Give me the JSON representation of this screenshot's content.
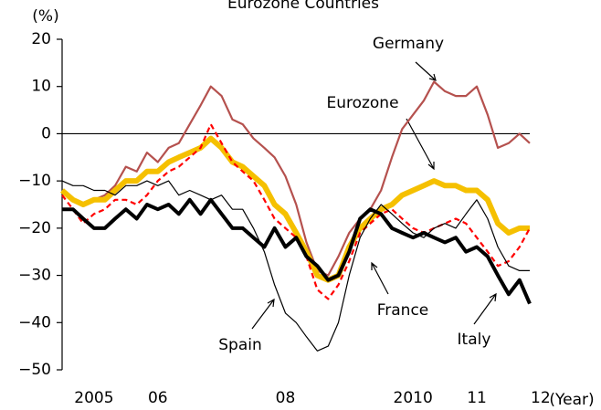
{
  "chart_data": {
    "type": "line",
    "title": "Eurozone Countries",
    "y_axis_label": "(%)",
    "x_axis_label": "(Year)",
    "xlim": [
      2005,
      2012.33
    ],
    "ylim": [
      -50,
      20
    ],
    "xticks": [
      {
        "value": 2005.5,
        "label": "2005"
      },
      {
        "value": 2006.5,
        "label": "06"
      },
      {
        "value": 2008.5,
        "label": "08"
      },
      {
        "value": 2010.5,
        "label": "2010"
      },
      {
        "value": 2011.5,
        "label": "11"
      },
      {
        "value": 2012.5,
        "label": "12"
      }
    ],
    "yticks": [
      20,
      10,
      0,
      {
        "value": -10,
        "label": "−10"
      },
      {
        "value": -20,
        "label": "−20"
      },
      {
        "value": -30,
        "label": "−30"
      },
      {
        "value": -40,
        "label": "−40"
      },
      {
        "value": -50,
        "label": "−50"
      }
    ],
    "x": [
      2005,
      2005.17,
      2005.33,
      2005.5,
      2005.67,
      2005.83,
      2006,
      2006.17,
      2006.33,
      2006.5,
      2006.67,
      2006.83,
      2007,
      2007.17,
      2007.33,
      2007.5,
      2007.67,
      2007.83,
      2008,
      2008.17,
      2008.33,
      2008.5,
      2008.67,
      2008.83,
      2009,
      2009.17,
      2009.33,
      2009.5,
      2009.67,
      2009.83,
      2010,
      2010.17,
      2010.33,
      2010.5,
      2010.67,
      2010.83,
      2011,
      2011.17,
      2011.33,
      2011.5,
      2011.67,
      2011.83,
      2012,
      2012.17,
      2012.33
    ],
    "series": [
      {
        "name": "Germany",
        "color": "#b5514e",
        "width": 2.2,
        "dash": false,
        "values": [
          -12,
          -14,
          -15,
          -14,
          -13,
          -11,
          -7,
          -8,
          -4,
          -6,
          -3,
          -2,
          2,
          6,
          10,
          8,
          3,
          2,
          -1,
          -3,
          -5,
          -9,
          -15,
          -23,
          -29,
          -30,
          -26,
          -21,
          -18,
          -16,
          -12,
          -5,
          1,
          4,
          7,
          11,
          9,
          8,
          8,
          10,
          4,
          -3,
          -2,
          0,
          -2
        ]
      },
      {
        "name": "Eurozone",
        "color": "#f5c000",
        "width": 6,
        "dash": false,
        "values": [
          -12,
          -14,
          -15,
          -14,
          -14,
          -12,
          -10,
          -10,
          -8,
          -8,
          -6,
          -5,
          -4,
          -3,
          -1,
          -3,
          -6,
          -7,
          -9,
          -11,
          -15,
          -17,
          -21,
          -25,
          -30,
          -31,
          -30,
          -24,
          -20,
          -18,
          -16,
          -15,
          -13,
          -12,
          -11,
          -10,
          -11,
          -11,
          -12,
          -12,
          -14,
          -19,
          -21,
          -20,
          -20
        ]
      },
      {
        "name": "France",
        "color": "#ff0000",
        "width": 2.2,
        "dash": true,
        "values": [
          -13,
          -16,
          -19,
          -17,
          -16,
          -14,
          -14,
          -15,
          -13,
          -10,
          -8,
          -7,
          -5,
          -3,
          2,
          -2,
          -6,
          -8,
          -10,
          -14,
          -18,
          -20,
          -22,
          -26,
          -33,
          -35,
          -32,
          -27,
          -21,
          -19,
          -17,
          -16,
          -18,
          -20,
          -21,
          -20,
          -19,
          -18,
          -19,
          -22,
          -25,
          -28,
          -27,
          -24,
          -20
        ]
      },
      {
        "name": "Spain",
        "color": "#000000",
        "width": 1.2,
        "dash": false,
        "values": [
          -10,
          -11,
          -11,
          -12,
          -12,
          -13,
          -11,
          -11,
          -10,
          -11,
          -10,
          -13,
          -12,
          -13,
          -14,
          -13,
          -16,
          -16,
          -20,
          -25,
          -32,
          -38,
          -40,
          -43,
          -46,
          -45,
          -40,
          -30,
          -22,
          -18,
          -15,
          -17,
          -19,
          -21,
          -22,
          -20,
          -19,
          -20,
          -17,
          -14,
          -18,
          -24,
          -28,
          -29,
          -29
        ]
      },
      {
        "name": "Italy",
        "color": "#000000",
        "width": 4,
        "dash": false,
        "values": [
          -16,
          -16,
          -18,
          -20,
          -20,
          -18,
          -16,
          -18,
          -15,
          -16,
          -15,
          -17,
          -14,
          -17,
          -14,
          -17,
          -20,
          -20,
          -22,
          -24,
          -20,
          -24,
          -22,
          -26,
          -28,
          -31,
          -30,
          -25,
          -18,
          -16,
          -17,
          -20,
          -21,
          -22,
          -21,
          -22,
          -23,
          -22,
          -25,
          -24,
          -26,
          -30,
          -34,
          -31,
          -36
        ]
      }
    ],
    "annotations": [
      {
        "text": "Germany"
      },
      {
        "text": "Eurozone"
      },
      {
        "text": "France"
      },
      {
        "text": "Spain"
      },
      {
        "text": "Italy"
      }
    ]
  }
}
